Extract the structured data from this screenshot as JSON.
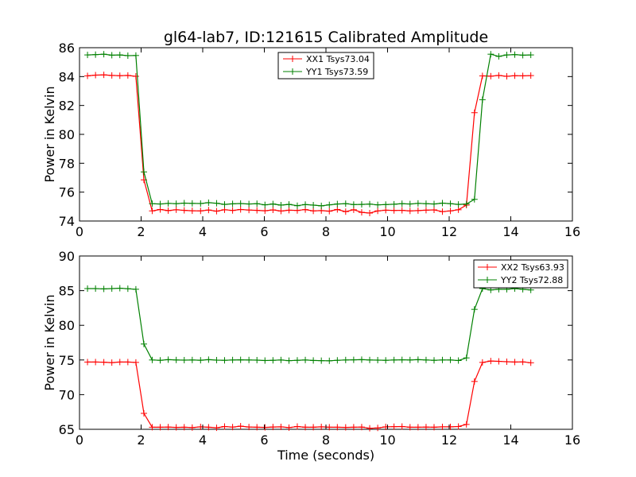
{
  "figure": {
    "title": "gl64-lab7, ID:121615 Calibrated Amplitude"
  },
  "chart_data": [
    {
      "type": "line",
      "title": "gl64-lab7, ID:121615 Calibrated Amplitude",
      "xlabel": "",
      "ylabel": "Power in Kelvin",
      "xlim": [
        0,
        16
      ],
      "ylim": [
        74,
        86
      ],
      "xticks": [
        0,
        2,
        4,
        6,
        8,
        10,
        12,
        14,
        16
      ],
      "yticks": [
        74,
        76,
        78,
        80,
        82,
        84,
        86
      ],
      "grid": false,
      "legend_position": "top-center",
      "x": [
        0.26,
        0.52,
        0.79,
        1.05,
        1.31,
        1.57,
        1.83,
        2.09,
        2.36,
        2.62,
        2.88,
        3.14,
        3.4,
        3.66,
        3.93,
        4.19,
        4.45,
        4.71,
        4.97,
        5.23,
        5.5,
        5.76,
        6.02,
        6.28,
        6.54,
        6.8,
        7.07,
        7.33,
        7.59,
        7.85,
        8.11,
        8.37,
        8.64,
        8.9,
        9.16,
        9.42,
        9.68,
        9.94,
        10.21,
        10.47,
        10.73,
        10.99,
        11.25,
        11.51,
        11.78,
        12.04,
        12.3,
        12.56,
        12.82,
        13.08,
        13.35,
        13.61,
        13.87,
        14.13,
        14.39,
        14.65
      ],
      "series": [
        {
          "name": "XX1 Tsys73.04",
          "color": "#ff0000",
          "values": [
            84.05,
            84.1,
            84.12,
            84.08,
            84.06,
            84.08,
            84.02,
            76.85,
            74.7,
            74.8,
            74.72,
            74.78,
            74.74,
            74.71,
            74.7,
            74.76,
            74.68,
            74.78,
            74.73,
            74.8,
            74.76,
            74.74,
            74.71,
            74.77,
            74.69,
            74.75,
            74.73,
            74.79,
            74.7,
            74.72,
            74.68,
            74.8,
            74.65,
            74.78,
            74.6,
            74.55,
            74.7,
            74.75,
            74.73,
            74.74,
            74.7,
            74.72,
            74.75,
            74.77,
            74.65,
            74.7,
            74.78,
            75.1,
            81.5,
            84.05,
            84.03,
            84.08,
            84.02,
            84.06,
            84.05,
            84.07
          ]
        },
        {
          "name": "YY1 Tsys73.59",
          "color": "#008000",
          "values": [
            85.5,
            85.52,
            85.55,
            85.48,
            85.5,
            85.45,
            85.46,
            77.4,
            75.2,
            75.18,
            75.22,
            75.2,
            75.24,
            75.22,
            75.21,
            75.27,
            75.23,
            75.15,
            75.19,
            75.21,
            75.18,
            75.2,
            75.12,
            75.18,
            75.1,
            75.15,
            75.06,
            75.14,
            75.1,
            75.05,
            75.12,
            75.18,
            75.2,
            75.14,
            75.15,
            75.17,
            75.12,
            75.14,
            75.16,
            75.2,
            75.18,
            75.22,
            75.2,
            75.18,
            75.24,
            75.2,
            75.15,
            75.18,
            75.5,
            82.4,
            85.55,
            85.4,
            85.5,
            85.52,
            85.48,
            85.5
          ]
        }
      ]
    },
    {
      "type": "line",
      "title": "",
      "xlabel": "Time (seconds)",
      "ylabel": "Power in Kelvin",
      "xlim": [
        0,
        16
      ],
      "ylim": [
        65,
        90
      ],
      "xticks": [
        0,
        2,
        4,
        6,
        8,
        10,
        12,
        14,
        16
      ],
      "yticks": [
        65,
        70,
        75,
        80,
        85,
        90
      ],
      "grid": false,
      "legend_position": "top-right",
      "x": [
        0.26,
        0.52,
        0.79,
        1.05,
        1.31,
        1.57,
        1.83,
        2.09,
        2.36,
        2.62,
        2.88,
        3.14,
        3.4,
        3.66,
        3.93,
        4.19,
        4.45,
        4.71,
        4.97,
        5.23,
        5.5,
        5.76,
        6.02,
        6.28,
        6.54,
        6.8,
        7.07,
        7.33,
        7.59,
        7.85,
        8.11,
        8.37,
        8.64,
        8.9,
        9.16,
        9.42,
        9.68,
        9.94,
        10.21,
        10.47,
        10.73,
        10.99,
        11.25,
        11.51,
        11.78,
        12.04,
        12.3,
        12.56,
        12.82,
        13.08,
        13.35,
        13.61,
        13.87,
        14.13,
        14.39,
        14.65
      ],
      "series": [
        {
          "name": "XX2 Tsys63.93",
          "color": "#ff0000",
          "values": [
            74.7,
            74.7,
            74.68,
            74.62,
            74.7,
            74.7,
            74.65,
            67.3,
            65.3,
            65.3,
            65.32,
            65.28,
            65.3,
            65.25,
            65.35,
            65.3,
            65.22,
            65.4,
            65.32,
            65.45,
            65.33,
            65.3,
            65.28,
            65.33,
            65.35,
            65.25,
            65.4,
            65.3,
            65.3,
            65.35,
            65.3,
            65.3,
            65.28,
            65.3,
            65.32,
            65.15,
            65.2,
            65.35,
            65.38,
            65.4,
            65.3,
            65.3,
            65.32,
            65.3,
            65.35,
            65.35,
            65.4,
            65.7,
            71.9,
            74.65,
            74.85,
            74.8,
            74.75,
            74.7,
            74.72,
            74.6
          ]
        },
        {
          "name": "YY2 Tsys72.88",
          "color": "#008000",
          "values": [
            85.3,
            85.3,
            85.25,
            85.3,
            85.35,
            85.28,
            85.2,
            77.3,
            75.0,
            74.95,
            75.05,
            75.0,
            74.98,
            75.0,
            74.96,
            75.05,
            74.98,
            74.95,
            75.0,
            75.02,
            75.0,
            74.98,
            74.92,
            74.95,
            75.0,
            74.9,
            74.95,
            75.0,
            74.93,
            74.9,
            74.88,
            74.95,
            75.0,
            75.02,
            75.05,
            75.0,
            74.98,
            74.95,
            75.0,
            75.02,
            75.0,
            75.05,
            75.0,
            74.95,
            75.0,
            75.0,
            74.92,
            75.3,
            82.3,
            85.3,
            85.1,
            85.2,
            85.2,
            85.3,
            85.2,
            85.1
          ]
        }
      ]
    }
  ]
}
